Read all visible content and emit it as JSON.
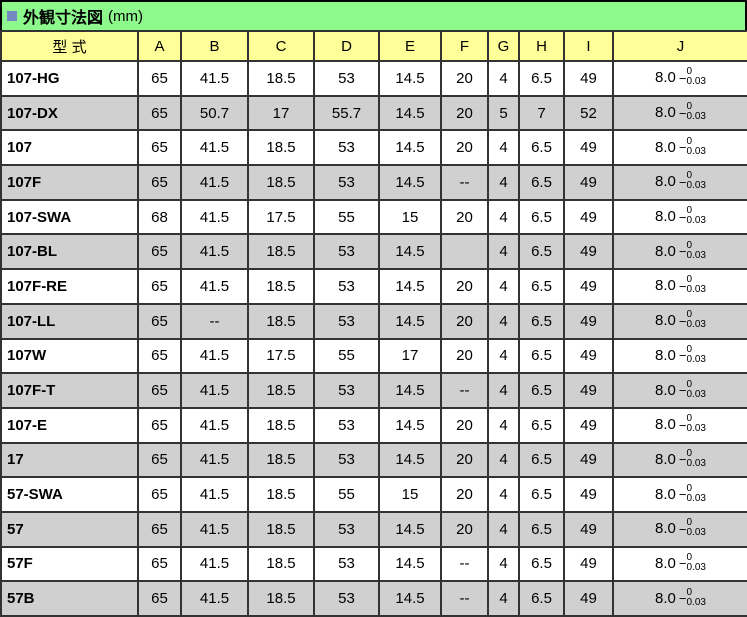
{
  "title": {
    "text": "外観寸法図",
    "unit": "(mm)"
  },
  "table": {
    "headers": [
      "型 式",
      "A",
      "B",
      "C",
      "D",
      "E",
      "F",
      "G",
      "H",
      "I",
      "J"
    ],
    "rows": [
      {
        "model": "107-HG",
        "values": [
          "65",
          "41.5",
          "18.5",
          "53",
          "14.5",
          "20",
          "4",
          "6.5",
          "49"
        ],
        "j": {
          "nominal": "8.0",
          "sign": "−",
          "upper": "0",
          "lower": "0.03"
        }
      },
      {
        "model": "107-DX",
        "values": [
          "65",
          "50.7",
          "17",
          "55.7",
          "14.5",
          "20",
          "5",
          "7",
          "52"
        ],
        "j": {
          "nominal": "8.0",
          "sign": "−",
          "upper": "0",
          "lower": "0.03"
        }
      },
      {
        "model": "107",
        "values": [
          "65",
          "41.5",
          "18.5",
          "53",
          "14.5",
          "20",
          "4",
          "6.5",
          "49"
        ],
        "j": {
          "nominal": "8.0",
          "sign": "−",
          "upper": "0",
          "lower": "0.03"
        }
      },
      {
        "model": "107F",
        "values": [
          "65",
          "41.5",
          "18.5",
          "53",
          "14.5",
          "--",
          "4",
          "6.5",
          "49"
        ],
        "j": {
          "nominal": "8.0",
          "sign": "−",
          "upper": "0",
          "lower": "0.03"
        }
      },
      {
        "model": "107-SWA",
        "values": [
          "68",
          "41.5",
          "17.5",
          "55",
          "15",
          "20",
          "4",
          "6.5",
          "49"
        ],
        "j": {
          "nominal": "8.0",
          "sign": "−",
          "upper": "0",
          "lower": "0.03"
        }
      },
      {
        "model": "107-BL",
        "values": [
          "65",
          "41.5",
          "18.5",
          "53",
          "14.5",
          "",
          "4",
          "6.5",
          "49"
        ],
        "j": {
          "nominal": "8.0",
          "sign": "−",
          "upper": "0",
          "lower": "0.03"
        }
      },
      {
        "model": "107F-RE",
        "values": [
          "65",
          "41.5",
          "18.5",
          "53",
          "14.5",
          "20",
          "4",
          "6.5",
          "49"
        ],
        "j": {
          "nominal": "8.0",
          "sign": "−",
          "upper": "0",
          "lower": "0.03"
        }
      },
      {
        "model": "107-LL",
        "values": [
          "65",
          "--",
          "18.5",
          "53",
          "14.5",
          "20",
          "4",
          "6.5",
          "49"
        ],
        "j": {
          "nominal": "8.0",
          "sign": "−",
          "upper": "0",
          "lower": "0.03"
        }
      },
      {
        "model": "107W",
        "values": [
          "65",
          "41.5",
          "17.5",
          "55",
          "17",
          "20",
          "4",
          "6.5",
          "49"
        ],
        "j": {
          "nominal": "8.0",
          "sign": "−",
          "upper": "0",
          "lower": "0.03"
        }
      },
      {
        "model": "107F-T",
        "values": [
          "65",
          "41.5",
          "18.5",
          "53",
          "14.5",
          "--",
          "4",
          "6.5",
          "49"
        ],
        "j": {
          "nominal": "8.0",
          "sign": "−",
          "upper": "0",
          "lower": "0.03"
        }
      },
      {
        "model": "107-E",
        "values": [
          "65",
          "41.5",
          "18.5",
          "53",
          "14.5",
          "20",
          "4",
          "6.5",
          "49"
        ],
        "j": {
          "nominal": "8.0",
          "sign": "−",
          "upper": "0",
          "lower": "0.03"
        }
      },
      {
        "model": "17",
        "values": [
          "65",
          "41.5",
          "18.5",
          "53",
          "14.5",
          "20",
          "4",
          "6.5",
          "49"
        ],
        "j": {
          "nominal": "8.0",
          "sign": "−",
          "upper": "0",
          "lower": "0.03"
        }
      },
      {
        "model": "57-SWA",
        "values": [
          "65",
          "41.5",
          "18.5",
          "55",
          "15",
          "20",
          "4",
          "6.5",
          "49"
        ],
        "j": {
          "nominal": "8.0",
          "sign": "−",
          "upper": "0",
          "lower": "0.03"
        }
      },
      {
        "model": "57",
        "values": [
          "65",
          "41.5",
          "18.5",
          "53",
          "14.5",
          "20",
          "4",
          "6.5",
          "49"
        ],
        "j": {
          "nominal": "8.0",
          "sign": "−",
          "upper": "0",
          "lower": "0.03"
        }
      },
      {
        "model": "57F",
        "values": [
          "65",
          "41.5",
          "18.5",
          "53",
          "14.5",
          "--",
          "4",
          "6.5",
          "49"
        ],
        "j": {
          "nominal": "8.0",
          "sign": "−",
          "upper": "0",
          "lower": "0.03"
        }
      },
      {
        "model": "57B",
        "values": [
          "65",
          "41.5",
          "18.5",
          "53",
          "14.5",
          "--",
          "4",
          "6.5",
          "49"
        ],
        "j": {
          "nominal": "8.0",
          "sign": "−",
          "upper": "0",
          "lower": "0.03"
        }
      }
    ]
  }
}
